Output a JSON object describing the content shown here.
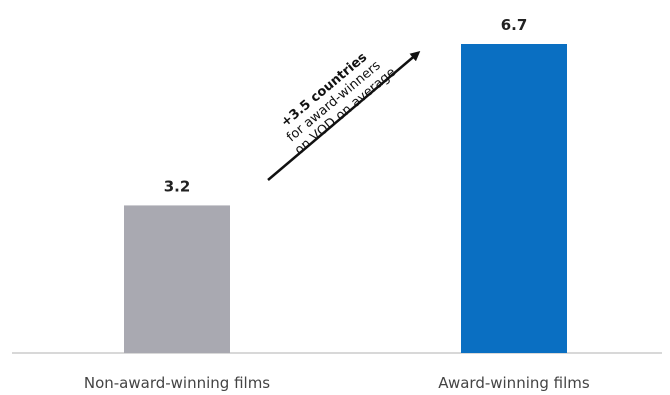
{
  "chart_data": {
    "type": "bar",
    "categories": [
      "Non-award-winning films",
      "Award-winning films"
    ],
    "values": [
      3.2,
      6.7
    ],
    "value_labels": [
      "3.2",
      "6.7"
    ],
    "colors": [
      "#a9a9b1",
      "#0a6fc2"
    ],
    "title": "",
    "xlabel": "",
    "ylabel": "",
    "ylim": [
      0,
      6.7
    ],
    "grid": false,
    "annotation": {
      "lines": [
        "+3.5 countries",
        "for award-winners",
        "on VOD on average"
      ]
    }
  }
}
